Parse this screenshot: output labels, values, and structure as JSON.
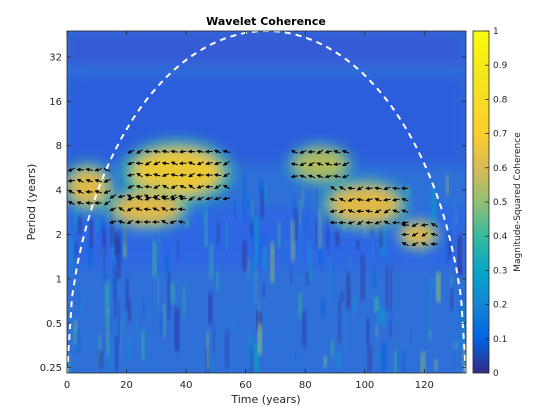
{
  "chart_data": {
    "type": "heatmap",
    "title": "Wavelet Coherence",
    "xlabel": "Time (years)",
    "ylabel": "Period (years)",
    "xlim": [
      0,
      134
    ],
    "ylim": [
      0.23,
      48
    ],
    "yscale": "log2",
    "x_ticks": [
      0,
      20,
      40,
      60,
      80,
      100,
      120
    ],
    "y_ticks": [
      {
        "value": 0.25,
        "label": "0.25"
      },
      {
        "value": 0.5,
        "label": "0.5"
      },
      {
        "value": 1,
        "label": "1"
      },
      {
        "value": 2,
        "label": "2"
      },
      {
        "value": 4,
        "label": "4"
      },
      {
        "value": 8,
        "label": "8"
      },
      {
        "value": 16,
        "label": "16"
      },
      {
        "value": 32,
        "label": "32"
      }
    ],
    "colorbar": {
      "label": "Magnitude-Squared Coherence",
      "range": [
        0,
        1
      ],
      "ticks": [
        "0",
        "0.1",
        "0.2",
        "0.3",
        "0.4",
        "0.5",
        "0.6",
        "0.7",
        "0.8",
        "0.9",
        "1"
      ],
      "colormap": "parula"
    },
    "high_coherence_regions": [
      {
        "x_center": 37,
        "period_center": 5.3,
        "x_extent": [
          20,
          55
        ],
        "period_extent": [
          3.2,
          8
        ],
        "peak": 0.85
      },
      {
        "x_center": 27,
        "period_center": 3.0,
        "x_extent": [
          14,
          40
        ],
        "period_extent": [
          2.2,
          4
        ],
        "peak": 0.75
      },
      {
        "x_center": 7,
        "period_center": 4.2,
        "x_extent": [
          0,
          15
        ],
        "period_extent": [
          3,
          6
        ],
        "peak": 0.75
      },
      {
        "x_center": 85,
        "period_center": 6.0,
        "x_extent": [
          75,
          95
        ],
        "period_extent": [
          4.5,
          8
        ],
        "peak": 0.7
      },
      {
        "x_center": 100,
        "period_center": 3.2,
        "x_extent": [
          88,
          115
        ],
        "period_extent": [
          2.2,
          4.5
        ],
        "peak": 0.8
      },
      {
        "x_center": 118,
        "period_center": 2.0,
        "x_extent": [
          112,
          125
        ],
        "period_extent": [
          1.6,
          2.5
        ],
        "peak": 0.8
      }
    ],
    "cone_of_influence": {
      "x_range": [
        0,
        134
      ],
      "period_max_at_center": 48,
      "style": "white dashed"
    },
    "phase_arrows": "black arrows drawn where coherence is high"
  }
}
